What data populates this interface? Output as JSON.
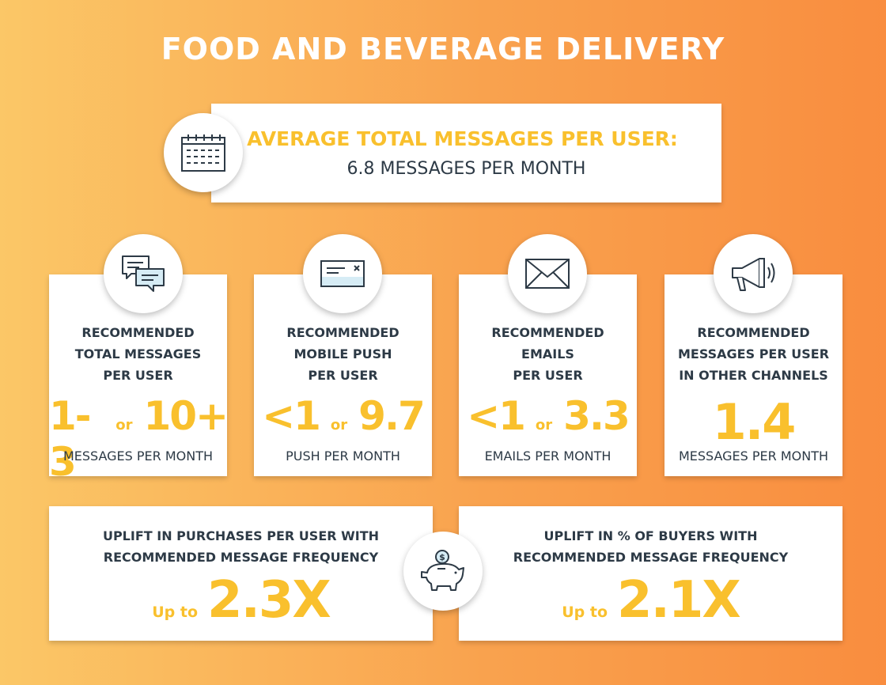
{
  "title": "FOOD AND BEVERAGE DELIVERY",
  "summary": {
    "icon": "calendar-icon",
    "label": "AVERAGE TOTAL MESSAGES PER USER:",
    "value": "6.8 MESSAGES PER MONTH"
  },
  "channels": [
    {
      "icon": "chat-bubbles-icon",
      "label_lines": [
        "RECOMMENDED",
        "TOTAL MESSAGES",
        "PER USER"
      ],
      "low": "1-3",
      "or": "or",
      "high": "10+",
      "unit": "MESSAGES PER MONTH"
    },
    {
      "icon": "push-notification-icon",
      "label_lines": [
        "RECOMMENDED",
        "MOBILE PUSH",
        "PER USER"
      ],
      "low": "<1",
      "or": "or",
      "high": "9.7",
      "unit": "PUSH PER MONTH"
    },
    {
      "icon": "envelope-icon",
      "label_lines": [
        "RECOMMENDED",
        "EMAILS",
        "PER USER"
      ],
      "low": "<1",
      "or": "or",
      "high": "3.3",
      "unit": "EMAILS PER MONTH"
    },
    {
      "icon": "megaphone-icon",
      "label_lines": [
        "RECOMMENDED",
        "MESSAGES PER USER",
        "IN OTHER CHANNELS"
      ],
      "single": "1.4",
      "unit": "MESSAGES PER MONTH"
    }
  ],
  "uplift": {
    "icon": "piggy-bank-icon",
    "purchases": {
      "label_lines": [
        "UPLIFT IN PURCHASES PER USER WITH",
        "RECOMMENDED MESSAGE FREQUENCY"
      ],
      "prefix": "Up to",
      "value": "2.3X"
    },
    "buyers": {
      "label_lines": [
        "UPLIFT IN % OF BUYERS WITH",
        "RECOMMENDED MESSAGE FREQUENCY"
      ],
      "prefix": "Up to",
      "value": "2.1X"
    }
  },
  "colors": {
    "accent": "#f9c02d",
    "text_dark": "#2d3a46",
    "background_start": "#fbc767",
    "background_end": "#f98d3f"
  }
}
